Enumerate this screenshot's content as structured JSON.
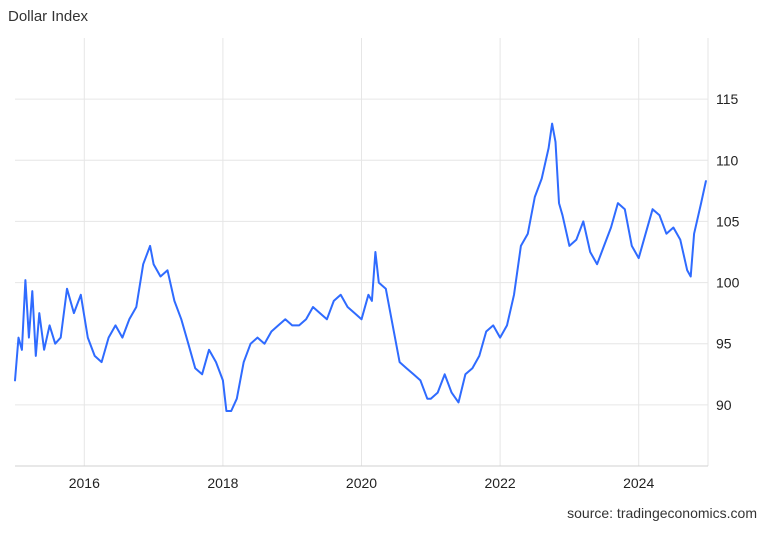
{
  "chart_data": {
    "type": "line",
    "title": "Dollar Index",
    "xlabel": "",
    "ylabel": "",
    "grid": true,
    "legend": "none",
    "xlim": [
      2015.0,
      2025.0
    ],
    "ylim": [
      85,
      120
    ],
    "x_ticks": [
      {
        "value": 2016,
        "label": "2016"
      },
      {
        "value": 2018,
        "label": "2018"
      },
      {
        "value": 2020,
        "label": "2020"
      },
      {
        "value": 2022,
        "label": "2022"
      },
      {
        "value": 2024,
        "label": "2024"
      }
    ],
    "y_ticks": [
      {
        "value": 90,
        "label": "90"
      },
      {
        "value": 95,
        "label": "95"
      },
      {
        "value": 100,
        "label": "100"
      },
      {
        "value": 105,
        "label": "105"
      },
      {
        "value": 110,
        "label": "110"
      },
      {
        "value": 115,
        "label": "115"
      }
    ],
    "series": [
      {
        "color": "#2f6bff",
        "x": [
          2015.0,
          2015.05,
          2015.1,
          2015.15,
          2015.2,
          2015.25,
          2015.3,
          2015.35,
          2015.42,
          2015.5,
          2015.58,
          2015.66,
          2015.75,
          2015.85,
          2015.95,
          2016.05,
          2016.15,
          2016.25,
          2016.35,
          2016.45,
          2016.55,
          2016.65,
          2016.75,
          2016.85,
          2016.95,
          2017.0,
          2017.1,
          2017.2,
          2017.3,
          2017.4,
          2017.5,
          2017.6,
          2017.7,
          2017.8,
          2017.9,
          2018.0,
          2018.05,
          2018.12,
          2018.2,
          2018.3,
          2018.4,
          2018.5,
          2018.6,
          2018.7,
          2018.8,
          2018.9,
          2019.0,
          2019.1,
          2019.2,
          2019.3,
          2019.4,
          2019.5,
          2019.6,
          2019.7,
          2019.8,
          2019.9,
          2020.0,
          2020.1,
          2020.15,
          2020.2,
          2020.25,
          2020.35,
          2020.45,
          2020.55,
          2020.65,
          2020.75,
          2020.85,
          2020.95,
          2021.0,
          2021.1,
          2021.2,
          2021.3,
          2021.4,
          2021.5,
          2021.6,
          2021.7,
          2021.8,
          2021.9,
          2022.0,
          2022.1,
          2022.2,
          2022.3,
          2022.4,
          2022.5,
          2022.6,
          2022.7,
          2022.75,
          2022.8,
          2022.85,
          2022.9,
          2023.0,
          2023.1,
          2023.2,
          2023.3,
          2023.4,
          2023.5,
          2023.6,
          2023.7,
          2023.8,
          2023.9,
          2024.0,
          2024.1,
          2024.2,
          2024.3,
          2024.4,
          2024.5,
          2024.6,
          2024.7,
          2024.75,
          2024.8,
          2024.9,
          2024.97
        ],
        "y": [
          92.0,
          95.5,
          94.5,
          100.2,
          95.5,
          99.3,
          94.0,
          97.5,
          94.5,
          96.5,
          95.0,
          95.5,
          99.5,
          97.5,
          99.0,
          95.5,
          94.0,
          93.5,
          95.5,
          96.5,
          95.5,
          97.0,
          98.0,
          101.5,
          103.0,
          101.5,
          100.5,
          101.0,
          98.5,
          97.0,
          95.0,
          93.0,
          92.5,
          94.5,
          93.5,
          92.0,
          89.5,
          89.5,
          90.5,
          93.5,
          95.0,
          95.5,
          95.0,
          96.0,
          96.5,
          97.0,
          96.5,
          96.5,
          97.0,
          98.0,
          97.5,
          97.0,
          98.5,
          99.0,
          98.0,
          97.5,
          97.0,
          99.0,
          98.5,
          102.5,
          100.0,
          99.5,
          96.5,
          93.5,
          93.0,
          92.5,
          92.0,
          90.5,
          90.5,
          91.0,
          92.5,
          91.0,
          90.2,
          92.5,
          93.0,
          94.0,
          96.0,
          96.5,
          95.5,
          96.5,
          99.0,
          103.0,
          104.0,
          107.0,
          108.5,
          111.0,
          113.0,
          111.5,
          106.5,
          105.5,
          103.0,
          103.5,
          105.0,
          102.5,
          101.5,
          103.0,
          104.5,
          106.5,
          106.0,
          103.0,
          102.0,
          104.0,
          106.0,
          105.5,
          104.0,
          104.5,
          103.5,
          101.0,
          100.5,
          104.0,
          106.5,
          108.3
        ]
      }
    ]
  },
  "source_note": "source: tradingeconomics.com"
}
